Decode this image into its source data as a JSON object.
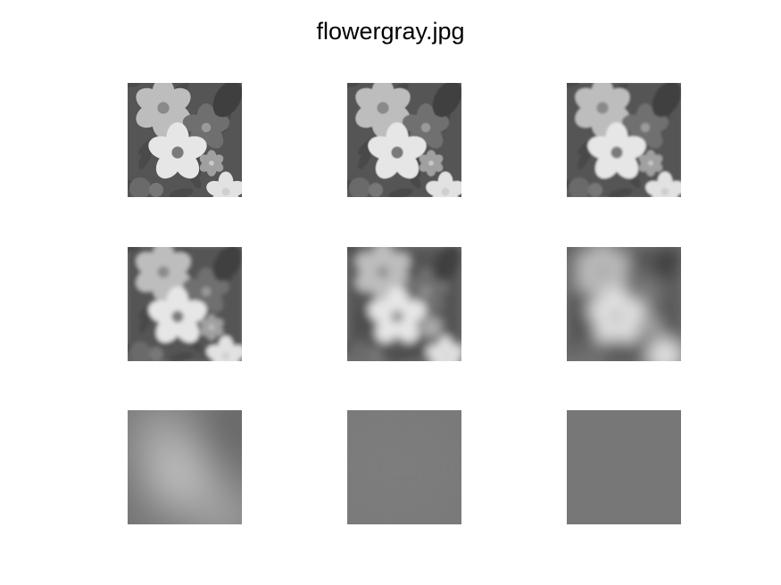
{
  "figure": {
    "title": "flowergray.jpg"
  },
  "panels": [
    {
      "blur": 0,
      "name": "panel-1"
    },
    {
      "blur": 0.6,
      "name": "panel-2"
    },
    {
      "blur": 1.2,
      "name": "panel-3"
    },
    {
      "blur": 2.5,
      "name": "panel-4"
    },
    {
      "blur": 5,
      "name": "panel-5"
    },
    {
      "blur": 9,
      "name": "panel-6"
    },
    {
      "blur": 28,
      "name": "panel-7"
    },
    {
      "blur": 60,
      "name": "panel-8"
    },
    {
      "blur": 200,
      "name": "panel-9"
    }
  ]
}
